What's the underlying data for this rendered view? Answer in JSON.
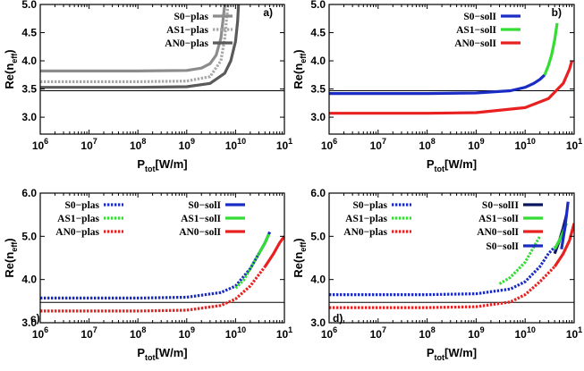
{
  "chart_data": [
    {
      "type": "line",
      "panel_label": "a)",
      "xscale": "log",
      "xlim": [
        1000000,
        100000000000
      ],
      "ylim": [
        2.7,
        5.0
      ],
      "xticks": [
        {
          "base": "10",
          "exp": "6"
        },
        {
          "base": "10",
          "exp": "7"
        },
        {
          "base": "10",
          "exp": "8"
        },
        {
          "base": "10",
          "exp": "9"
        },
        {
          "base": "10",
          "exp": "10"
        },
        {
          "base": "10",
          "exp": "1"
        }
      ],
      "yticks": [
        "3.0",
        "3.5",
        "4.0",
        "4.5",
        "5.0"
      ],
      "xlabel": {
        "main": "P",
        "sub": "tot",
        "rest": "[W/m]"
      },
      "ylabel": {
        "main": "Re(n",
        "sub": "eff",
        "rest": ")"
      },
      "hline": 3.47,
      "legend_position": "top-right",
      "series": [
        {
          "name": "S0−plas",
          "color": "#8c8c8c",
          "dash": "solid",
          "x": [
            1000000,
            100000000,
            1000000000,
            2000000000,
            3000000000,
            4000000000,
            5000000000,
            5500000000,
            6000000000
          ],
          "y": [
            3.82,
            3.82,
            3.83,
            3.87,
            3.95,
            4.1,
            4.4,
            4.7,
            5.0
          ]
        },
        {
          "name": "AS1−plas",
          "color": "#a8a8a8",
          "dash": "dotted",
          "x": [
            1000000,
            100000000,
            1000000000,
            3000000000,
            5000000000,
            6000000000,
            7000000000
          ],
          "y": [
            3.63,
            3.63,
            3.64,
            3.72,
            4.0,
            4.4,
            5.0
          ]
        },
        {
          "name": "AN0−plas",
          "color": "#5a5a5a",
          "dash": "solid",
          "x": [
            1000000,
            100000000,
            1000000000,
            3000000000,
            6000000000,
            8000000000,
            10000000000,
            11000000000,
            11500000000
          ],
          "y": [
            3.53,
            3.53,
            3.54,
            3.6,
            3.78,
            4.0,
            4.35,
            4.7,
            5.0
          ]
        }
      ]
    },
    {
      "type": "line",
      "panel_label": "b)",
      "xscale": "log",
      "xlim": [
        1000000,
        100000000000
      ],
      "ylim": [
        2.7,
        5.0
      ],
      "xticks": [
        {
          "base": "10",
          "exp": "6"
        },
        {
          "base": "10",
          "exp": "7"
        },
        {
          "base": "10",
          "exp": "8"
        },
        {
          "base": "10",
          "exp": "9"
        },
        {
          "base": "10",
          "exp": "10"
        },
        {
          "base": "10",
          "exp": "1"
        }
      ],
      "yticks": [
        "3.0",
        "3.5",
        "4.0",
        "4.5",
        "5.0"
      ],
      "xlabel": {
        "main": "P",
        "sub": "tot",
        "rest": "[W/m]"
      },
      "ylabel": {
        "main": "Re(n",
        "sub": "eff",
        "rest": ")"
      },
      "hline": 3.47,
      "legend_position": "top-right",
      "series": [
        {
          "name": "S0−solI",
          "color": "#1a2cc4",
          "dash": "solid",
          "x": [
            1000000,
            100000000,
            1000000000,
            5000000000,
            10000000000,
            15000000000,
            20000000000,
            25000000000
          ],
          "y": [
            3.42,
            3.42,
            3.43,
            3.47,
            3.53,
            3.6,
            3.67,
            3.75
          ]
        },
        {
          "name": "AS1−solI",
          "color": "#33dd33",
          "dash": "solid",
          "x": [
            25000000000,
            30000000000,
            35000000000,
            40000000000,
            45000000000
          ],
          "y": [
            3.75,
            3.92,
            4.12,
            4.37,
            4.67
          ]
        },
        {
          "name": "AN0−solI",
          "color": "#e82020",
          "dash": "solid",
          "x": [
            1000000,
            100000000,
            1000000000,
            10000000000,
            30000000000,
            60000000000,
            80000000000,
            90000000000
          ],
          "y": [
            3.07,
            3.07,
            3.08,
            3.17,
            3.33,
            3.6,
            3.85,
            4.0
          ]
        }
      ]
    },
    {
      "type": "line",
      "panel_label": "c)",
      "xscale": "log",
      "xlim": [
        1000000,
        100000000000
      ],
      "ylim": [
        3.0,
        6.0
      ],
      "xticks": [
        {
          "base": "10",
          "exp": "6"
        },
        {
          "base": "10",
          "exp": "7"
        },
        {
          "base": "10",
          "exp": "8"
        },
        {
          "base": "10",
          "exp": "9"
        },
        {
          "base": "10",
          "exp": "10"
        },
        {
          "base": "10",
          "exp": "1"
        }
      ],
      "yticks": [
        "3.0",
        "4.0",
        "5.0",
        "6.0"
      ],
      "xlabel": {
        "main": "P",
        "sub": "tot",
        "rest": "[W/m]"
      },
      "ylabel": {
        "main": "Re(n",
        "sub": "eff",
        "rest": ")"
      },
      "hline": 3.47,
      "legend_position": "top",
      "series": [
        {
          "name": "S0−plas",
          "color": "#1a2cc4",
          "dash": "dotted",
          "x": [
            1000000,
            100000000,
            1000000000,
            5000000000,
            10000000000,
            20000000000,
            30000000000
          ],
          "y": [
            3.57,
            3.57,
            3.59,
            3.7,
            3.85,
            4.25,
            4.6
          ]
        },
        {
          "name": "AS1−plas",
          "color": "#33dd33",
          "dash": "dotted",
          "x": [
            10000000000,
            15000000000,
            20000000000,
            30000000000
          ],
          "y": [
            3.8,
            4.0,
            4.25,
            4.6
          ]
        },
        {
          "name": "AN0−plas",
          "color": "#e82020",
          "dash": "dotted",
          "x": [
            1000000,
            100000000,
            1000000000,
            5000000000,
            10000000000,
            20000000000,
            40000000000
          ],
          "y": [
            3.27,
            3.27,
            3.29,
            3.4,
            3.55,
            3.85,
            4.3
          ]
        },
        {
          "name": "S0−solI",
          "color": "#1a2cc4",
          "dash": "solid",
          "x": [
            30000000000,
            40000000000,
            50000000000
          ],
          "y": [
            4.6,
            4.85,
            5.1
          ]
        },
        {
          "name": "AS1−solI",
          "color": "#33dd33",
          "dash": "solid",
          "x": [
            30000000000,
            40000000000,
            48000000000
          ],
          "y": [
            4.6,
            4.85,
            5.05
          ]
        },
        {
          "name": "AN0−solI",
          "color": "#e82020",
          "dash": "solid",
          "x": [
            40000000000,
            60000000000,
            80000000000,
            100000000000
          ],
          "y": [
            4.3,
            4.6,
            4.85,
            5.0
          ]
        }
      ]
    },
    {
      "type": "line",
      "panel_label": "d)",
      "xscale": "log",
      "xlim": [
        1000000,
        100000000000
      ],
      "ylim": [
        3.0,
        6.0
      ],
      "xticks": [
        {
          "base": "10",
          "exp": "6"
        },
        {
          "base": "10",
          "exp": "7"
        },
        {
          "base": "10",
          "exp": "8"
        },
        {
          "base": "10",
          "exp": "9"
        },
        {
          "base": "10",
          "exp": "10"
        },
        {
          "base": "10",
          "exp": "1"
        }
      ],
      "yticks": [
        "3.0",
        "4.0",
        "5.0",
        "6.0"
      ],
      "xlabel": {
        "main": "P",
        "sub": "tot",
        "rest": "[W/m]"
      },
      "ylabel": {
        "main": "Re(n",
        "sub": "eff",
        "rest": ")"
      },
      "hline": 3.47,
      "legend_position": "top",
      "series": [
        {
          "name": "S0−plas",
          "color": "#1a2cc4",
          "dash": "dotted",
          "x": [
            1000000,
            100000000,
            1000000000,
            5000000000,
            10000000000,
            20000000000,
            30000000000,
            40000000000
          ],
          "y": [
            3.65,
            3.65,
            3.67,
            3.78,
            3.95,
            4.3,
            4.6,
            4.75
          ]
        },
        {
          "name": "AS1−plas",
          "color": "#33dd33",
          "dash": "dotted",
          "x": [
            3000000000,
            5000000000,
            10000000000,
            15000000000,
            20000000000
          ],
          "y": [
            3.9,
            4.05,
            4.4,
            4.75,
            5.0
          ]
        },
        {
          "name": "AN0−plas",
          "color": "#e82020",
          "dash": "dotted",
          "x": [
            1000000,
            100000000,
            1000000000,
            5000000000,
            10000000000,
            20000000000,
            40000000000
          ],
          "y": [
            3.35,
            3.35,
            3.37,
            3.48,
            3.65,
            3.95,
            4.3
          ]
        },
        {
          "name": "S0−solII",
          "color": "#0a1560",
          "dash": "solid",
          "x": [
            40000000000,
            50000000000,
            60000000000,
            70000000000
          ],
          "y": [
            4.6,
            4.9,
            5.2,
            5.5
          ]
        },
        {
          "name": "AS1−solI",
          "color": "#33dd33",
          "dash": "solid",
          "x": [
            40000000000,
            55000000000,
            70000000000
          ],
          "y": [
            4.7,
            5.0,
            5.3
          ]
        },
        {
          "name": "AN0−solI",
          "color": "#e82020",
          "dash": "solid",
          "x": [
            40000000000,
            60000000000,
            80000000000,
            100000000000
          ],
          "y": [
            4.3,
            4.6,
            4.9,
            5.3
          ]
        },
        {
          "name": "S0−solI",
          "color": "#1a2cc4",
          "dash": "solid",
          "x": [
            55000000000,
            65000000000,
            75000000000
          ],
          "y": [
            4.7,
            5.2,
            5.8
          ]
        }
      ]
    }
  ]
}
